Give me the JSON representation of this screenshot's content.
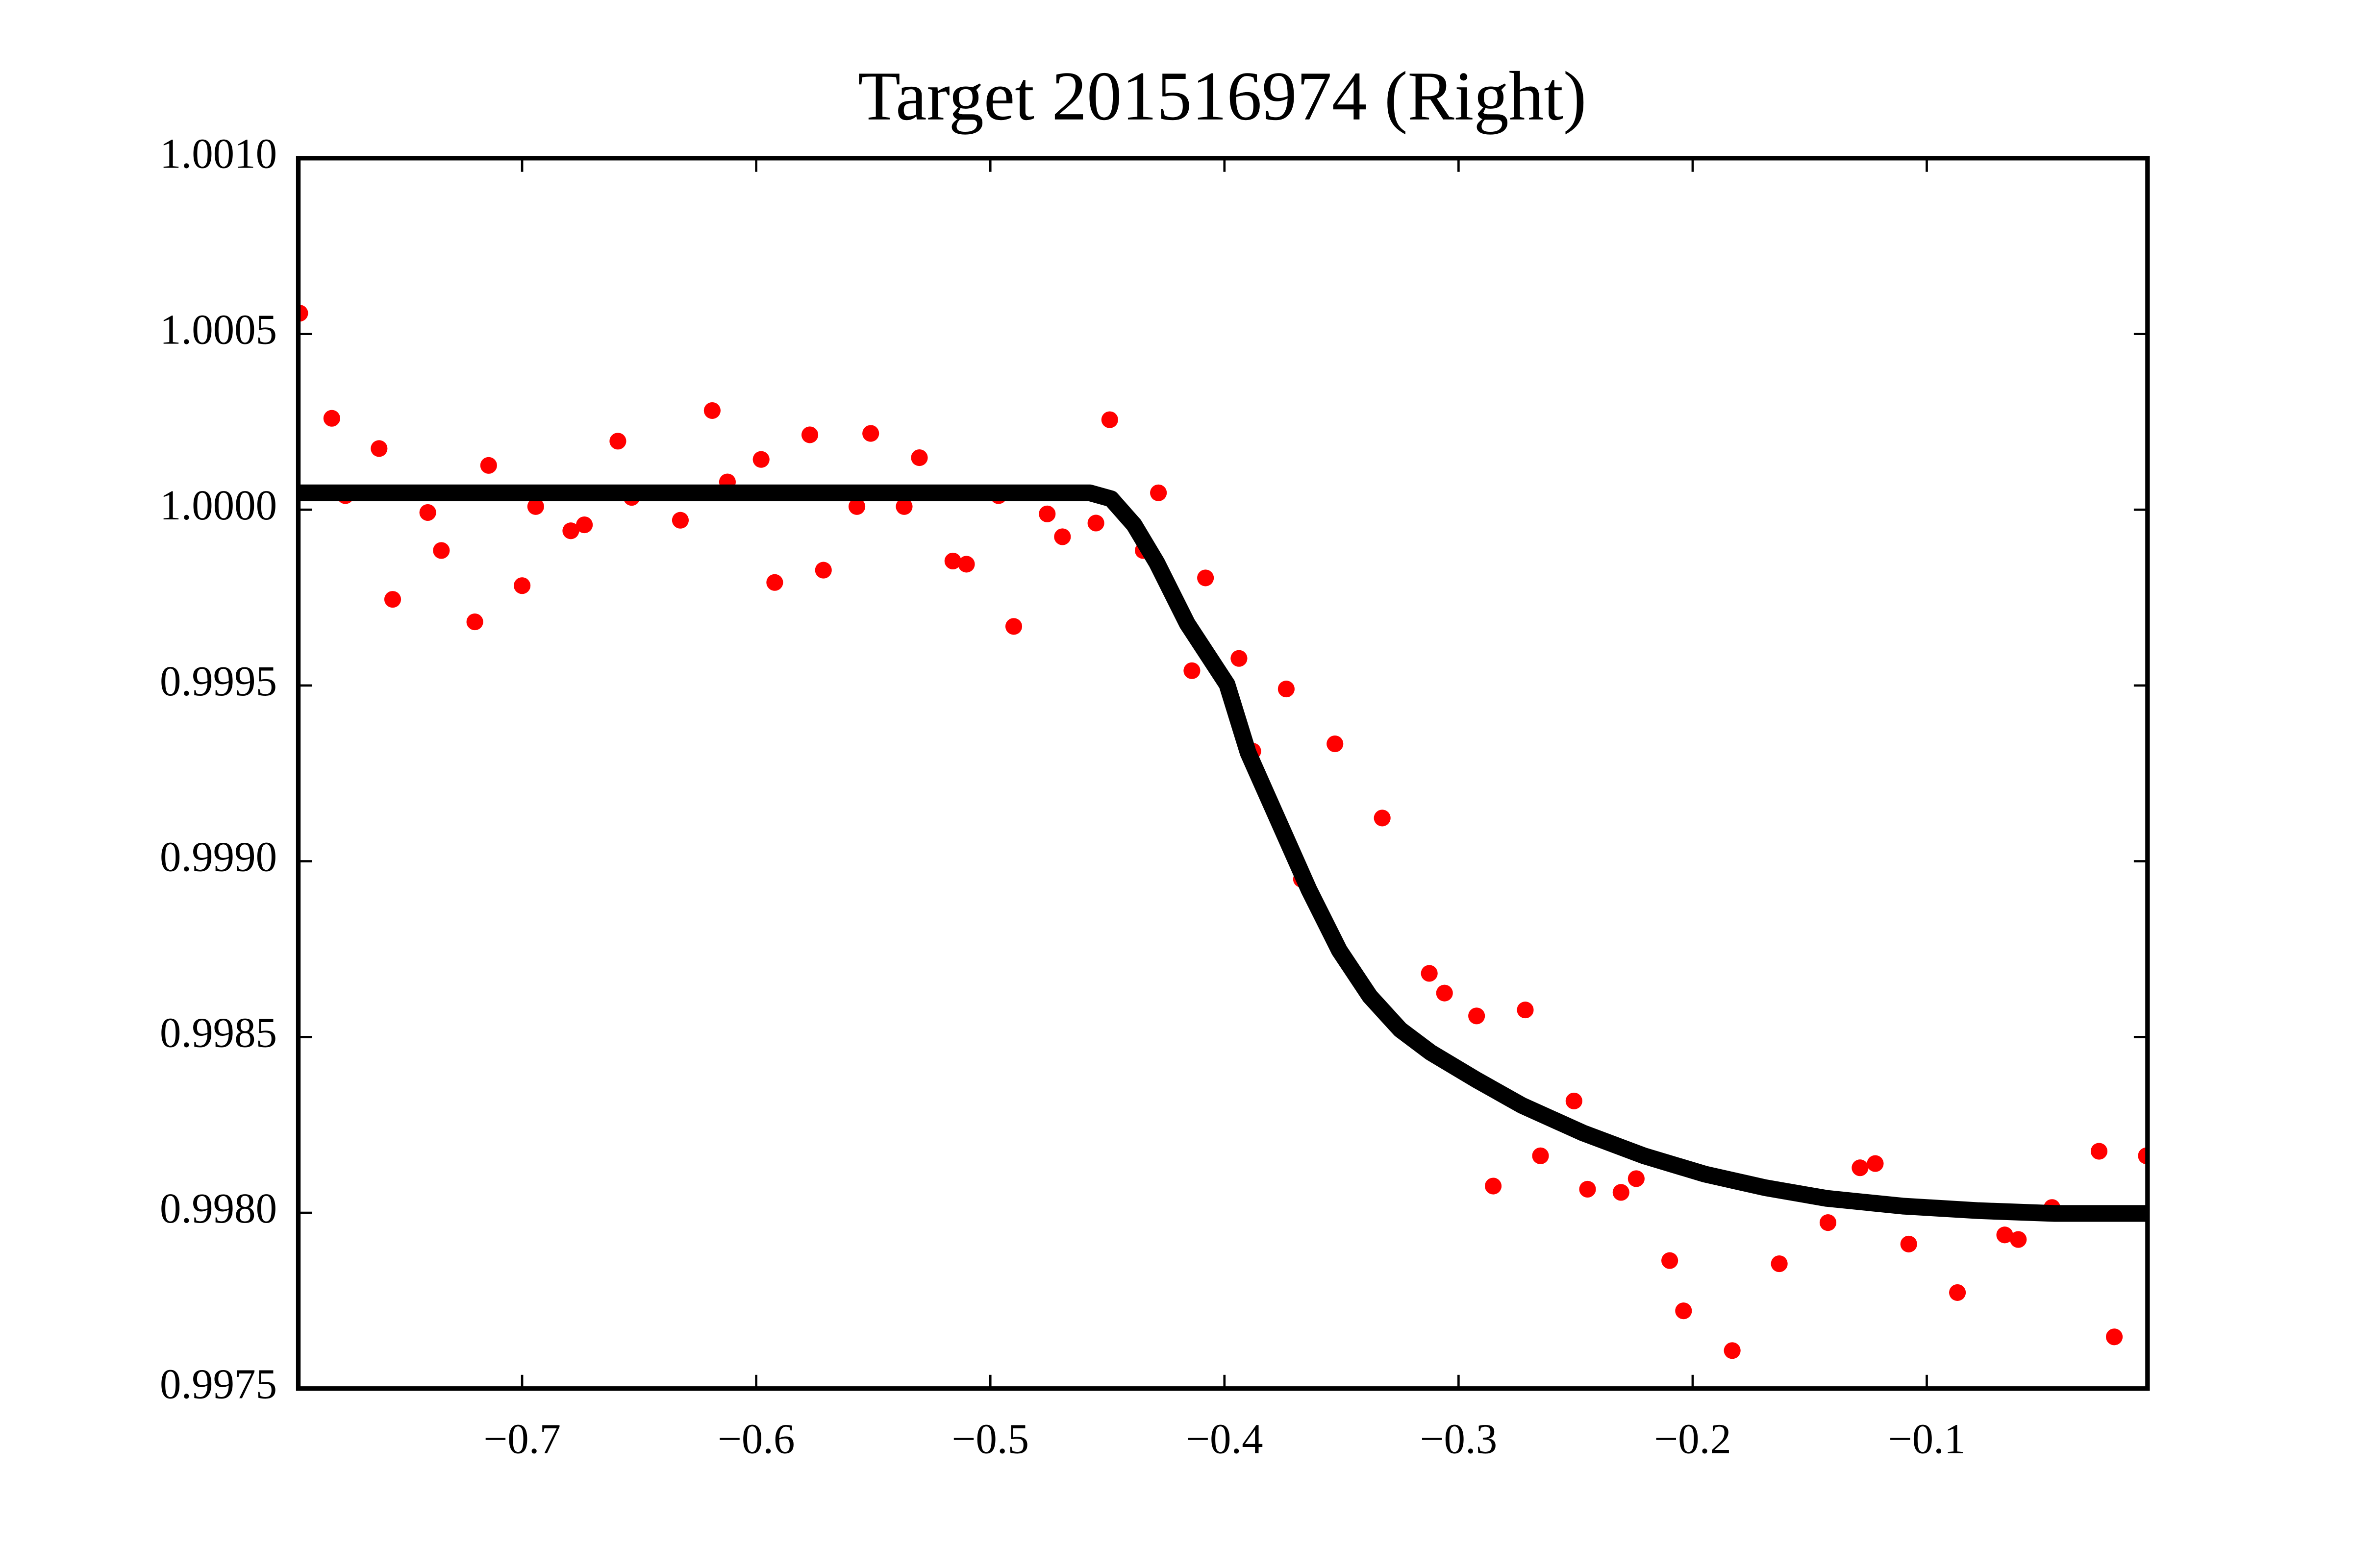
{
  "chart_data": {
    "type": "scatter",
    "title": "Target 201516974 (Right)",
    "xlim": [
      -0.7956,
      -0.0057
    ],
    "ylim": [
      0.9975,
      1.001
    ],
    "xticks": [
      {
        "value": -0.7,
        "label": "−0.7"
      },
      {
        "value": -0.6,
        "label": "−0.6"
      },
      {
        "value": -0.5,
        "label": "−0.5"
      },
      {
        "value": -0.4,
        "label": "−0.4"
      },
      {
        "value": -0.3,
        "label": "−0.3"
      },
      {
        "value": -0.2,
        "label": "−0.2"
      },
      {
        "value": -0.1,
        "label": "−0.1"
      }
    ],
    "yticks": [
      {
        "value": 0.9975,
        "label": "0.9975"
      },
      {
        "value": 0.998,
        "label": "0.9980"
      },
      {
        "value": 0.9985,
        "label": "0.9985"
      },
      {
        "value": 0.999,
        "label": "0.9990"
      },
      {
        "value": 0.9995,
        "label": "0.9995"
      },
      {
        "value": 1,
        "label": "1.0000"
      },
      {
        "value": 1.0005,
        "label": "1.0005"
      },
      {
        "value": 1.001,
        "label": "1.0010"
      }
    ],
    "series": [
      {
        "type": "scatter",
        "color": "#ff0000",
        "x": [
          -0.795,
          -0.7813,
          -0.7755,
          -0.7611,
          -0.7553,
          -0.7403,
          -0.7345,
          -0.7202,
          -0.7143,
          -0.7,
          -0.6942,
          -0.6792,
          -0.6734,
          -0.6591,
          -0.6532,
          -0.6324,
          -0.6188,
          -0.6123,
          -0.5979,
          -0.5921,
          -0.5771,
          -0.5713,
          -0.557,
          -0.5511,
          -0.5368,
          -0.5303,
          -0.516,
          -0.5102,
          -0.4965,
          -0.49,
          -0.4757,
          -0.4692,
          -0.4549,
          -0.449,
          -0.4347,
          -0.4282,
          -0.4139,
          -0.4081,
          -0.3938,
          -0.3879,
          -0.3736,
          -0.3671,
          -0.3528,
          -0.3326,
          -0.3125,
          -0.306,
          -0.2923,
          -0.2852,
          -0.2715,
          -0.265,
          -0.2507,
          -0.2449,
          -0.2306,
          -0.2241,
          -0.2098,
          -0.2039,
          -0.1831,
          -0.163,
          -0.1422,
          -0.1285,
          -0.122,
          -0.1077,
          -0.0869,
          -0.0667,
          -0.0609,
          -0.0465,
          -0.0264,
          -0.0199,
          -0.0062
        ],
        "values": [
          1.000559,
          1.00026,
          1.00004,
          1.000174,
          0.999745,
          0.999992,
          0.999884,
          0.999681,
          1.000126,
          0.999784,
          1.000009,
          0.99994,
          0.999957,
          1.000195,
          1.000035,
          0.99997,
          1.000282,
          1.000079,
          1.000143,
          0.999793,
          1.000213,
          0.999828,
          1.000009,
          1.000217,
          1.000009,
          1.000148,
          0.999854,
          0.999845,
          1.00004,
          0.999668,
          0.999988,
          0.999923,
          0.999962,
          1.000256,
          0.999884,
          1.000048,
          0.999542,
          0.999806,
          0.999577,
          0.999313,
          0.99949,
          0.998949,
          0.999334,
          0.999123,
          0.998681,
          0.998625,
          0.99856,
          0.998076,
          0.998577,
          0.998162,
          0.998318,
          0.998067,
          0.998058,
          0.998097,
          0.997864,
          0.997721,
          0.997608,
          0.997855,
          0.997972,
          0.998128,
          0.99814,
          0.997911,
          0.997773,
          0.997937,
          0.997924,
          0.998015,
          0.998175,
          0.997647,
          0.998162
        ]
      },
      {
        "type": "line",
        "color": "#000000",
        "x": [
          -0.7956,
          -0.4575,
          -0.4484,
          -0.4386,
          -0.4289,
          -0.4159,
          -0.3989,
          -0.3899,
          -0.3769,
          -0.3639,
          -0.3509,
          -0.3379,
          -0.3249,
          -0.3119,
          -0.2923,
          -0.2728,
          -0.2468,
          -0.2208,
          -0.1948,
          -0.1688,
          -0.1428,
          -0.1103,
          -0.0778,
          -0.0453,
          -0.0057
        ],
        "values": [
          1.000048,
          1.000048,
          1.000031,
          0.999957,
          0.999849,
          0.999676,
          0.999503,
          0.999309,
          0.999114,
          0.998919,
          0.998746,
          0.998616,
          0.998521,
          0.998456,
          0.998378,
          0.998305,
          0.998227,
          0.998162,
          0.99811,
          0.998071,
          0.998041,
          0.998019,
          0.998006,
          0.997998,
          0.997998
        ]
      }
    ]
  }
}
